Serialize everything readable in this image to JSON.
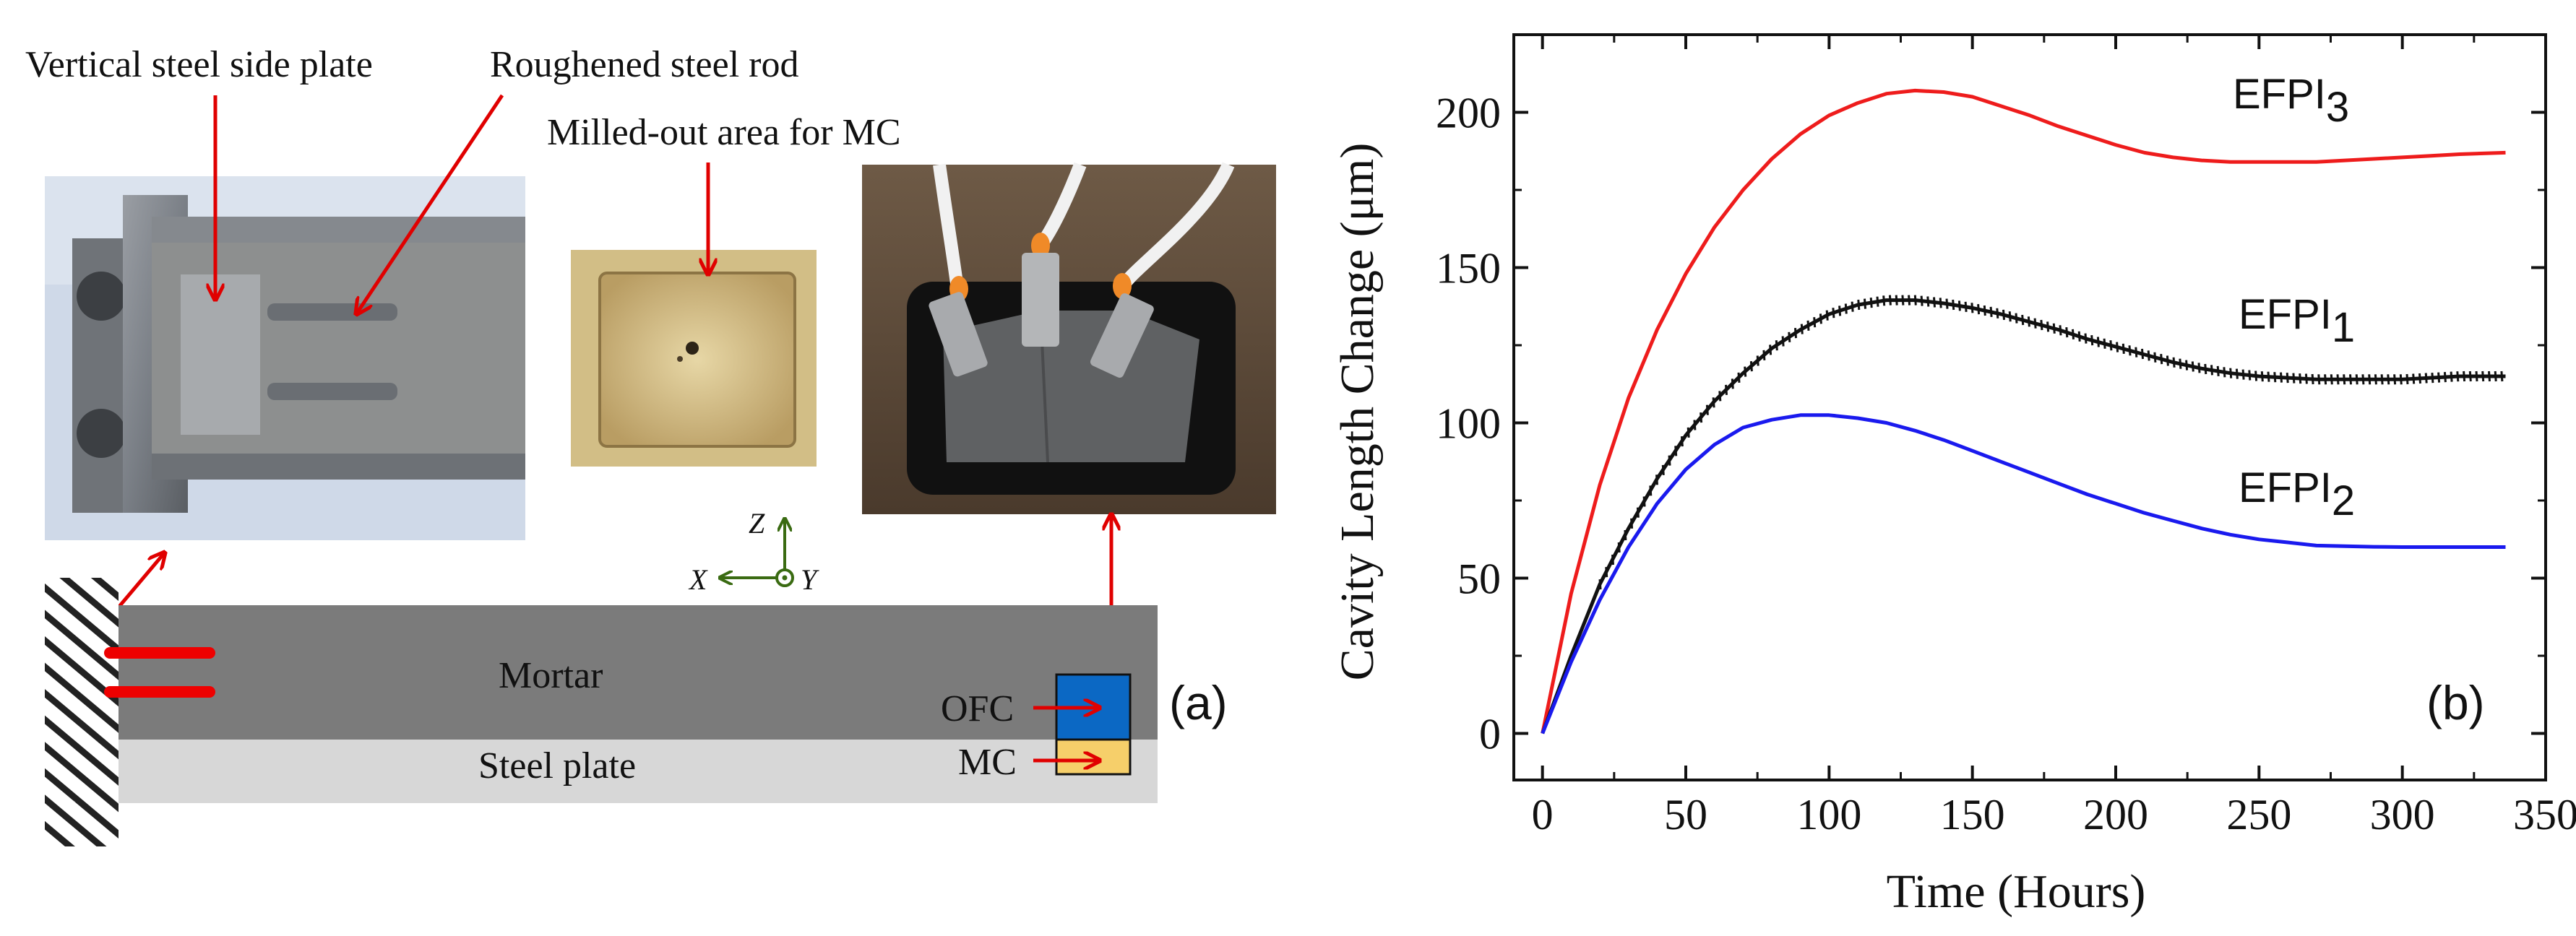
{
  "left_panel": {
    "labels": {
      "side_plate": "Vertical steel side plate",
      "rod": "Roughened steel rod",
      "milled": "Milled-out area for MC",
      "mortar": "Mortar",
      "steel_plate": "Steel plate",
      "ofc": "OFC",
      "mc": "MC",
      "panel_tag": "(a)"
    },
    "axes": {
      "z": "Z",
      "x": "X",
      "y": "Y"
    }
  },
  "chart_data": {
    "type": "line",
    "xlabel": "Time (Hours)",
    "ylabel": "Cavity Length Change (μm)",
    "xlim": [
      -10,
      350
    ],
    "ylim": [
      -15,
      225
    ],
    "xticks": [
      0,
      50,
      100,
      150,
      200,
      250,
      300,
      350
    ],
    "yticks": [
      0,
      50,
      100,
      150,
      200
    ],
    "tick_labels_x": [
      "0",
      "50",
      "100",
      "150",
      "200",
      "250",
      "300",
      "350"
    ],
    "tick_labels_y": [
      "0",
      "50",
      "100",
      "150",
      "200"
    ],
    "panel_tag": "(b)",
    "series": [
      {
        "name": "EFPI3",
        "label_base": "EFPI",
        "label_sub": "3",
        "color": "#ee1c1c",
        "ripple": false,
        "x": [
          0,
          10,
          20,
          30,
          40,
          50,
          60,
          70,
          80,
          90,
          100,
          110,
          120,
          130,
          140,
          150,
          160,
          170,
          180,
          190,
          200,
          210,
          220,
          230,
          240,
          250,
          260,
          270,
          280,
          290,
          300,
          310,
          320,
          336
        ],
        "y": [
          0,
          45,
          80,
          108,
          130,
          148,
          163,
          175,
          185,
          193,
          199,
          203,
          206,
          207,
          206.5,
          205,
          202,
          199,
          195.5,
          192.5,
          189.5,
          187,
          185.5,
          184.5,
          184,
          184,
          184,
          184,
          184.5,
          185,
          185.5,
          186,
          186.5,
          187
        ]
      },
      {
        "name": "EFPI1",
        "label_base": "EFPI",
        "label_sub": "1",
        "color": "#111111",
        "ripple": true,
        "x": [
          0,
          10,
          20,
          30,
          40,
          50,
          60,
          70,
          80,
          90,
          100,
          110,
          120,
          130,
          140,
          150,
          160,
          170,
          180,
          190,
          200,
          210,
          220,
          230,
          240,
          250,
          260,
          270,
          280,
          290,
          300,
          310,
          320,
          336
        ],
        "y": [
          0,
          25,
          48,
          66,
          82,
          96,
          107,
          116,
          124,
          130,
          135,
          138,
          139.5,
          139.5,
          138.5,
          137,
          135,
          132.5,
          130,
          127,
          124.5,
          122,
          119.5,
          117.5,
          116,
          115,
          114.5,
          114,
          114,
          114,
          114,
          114.5,
          115,
          115
        ]
      },
      {
        "name": "EFPI2",
        "label_base": "EFPI",
        "label_sub": "2",
        "color": "#1a1aee",
        "ripple": false,
        "x": [
          0,
          10,
          20,
          30,
          40,
          50,
          60,
          70,
          80,
          90,
          100,
          110,
          120,
          130,
          140,
          150,
          160,
          170,
          180,
          190,
          200,
          210,
          220,
          230,
          240,
          250,
          260,
          270,
          280,
          290,
          300,
          310,
          320,
          336
        ],
        "y": [
          0,
          23,
          43,
          60,
          74,
          85,
          93,
          98.5,
          101,
          102.5,
          102.5,
          101.5,
          100,
          97.5,
          94.5,
          91,
          87.5,
          84,
          80.5,
          77,
          74,
          71,
          68.5,
          66,
          64,
          62.5,
          61.5,
          60.5,
          60.3,
          60.1,
          60,
          60,
          60,
          60
        ]
      }
    ]
  }
}
